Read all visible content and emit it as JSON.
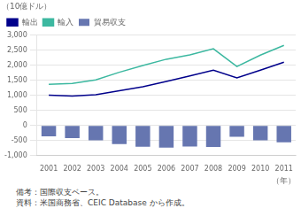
{
  "chart_data": {
    "type": "bar",
    "categories": [
      "2001",
      "2002",
      "2003",
      "2004",
      "2005",
      "2006",
      "2007",
      "2008",
      "2009",
      "2010",
      "2011"
    ],
    "series": [
      {
        "name": "貿易収支",
        "type": "bar",
        "color": "#6676b0",
        "values": [
          -363,
          -420,
          -499,
          -618,
          -708,
          -742,
          -699,
          -716,
          -379,
          -498,
          -560
        ]
      },
      {
        "name": "輸出",
        "type": "line",
        "color": "#00008b",
        "values": [
          1007,
          975,
          1018,
          1151,
          1287,
          1460,
          1645,
          1835,
          1578,
          1840,
          2103
        ]
      },
      {
        "name": "輸入",
        "type": "line",
        "color": "#3cb8a0",
        "values": [
          1370,
          1395,
          1517,
          1769,
          1995,
          2202,
          2344,
          2551,
          1957,
          2338,
          2663
        ]
      }
    ],
    "ylabel": "（10億ドル）",
    "xlabel": "（年）",
    "annotations": [
      "備考：国際収支ベース。",
      "資料：米国商務省、CEIC Database から作成。"
    ],
    "ylim": [
      -1000,
      3000
    ],
    "yticks": [
      {
        "value": -1000,
        "label": "-1,000"
      },
      -500,
      0,
      500,
      {
        "value": 1000,
        "label": "1,000"
      },
      {
        "value": 1500,
        "label": "1,500"
      },
      {
        "value": 2000,
        "label": "2,000"
      },
      {
        "value": 2500,
        "label": "2,500"
      },
      {
        "value": 3000,
        "label": "3,000"
      }
    ],
    "grid": "y",
    "legend": "upper left"
  }
}
